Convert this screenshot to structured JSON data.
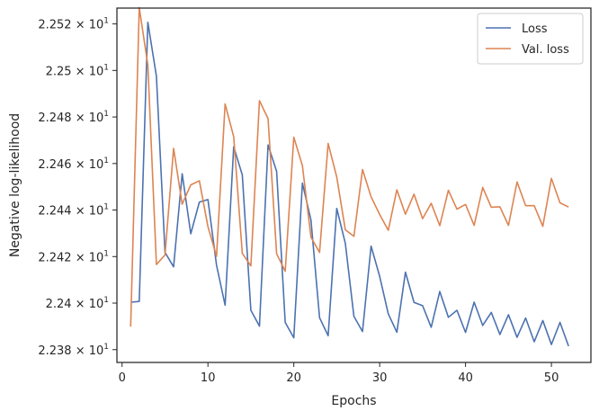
{
  "chart_data": {
    "type": "line",
    "xlabel": "Epochs",
    "ylabel": "Negative log-likelihood",
    "xlim": [
      -0.6,
      54.6
    ],
    "ylim": [
      22.3745,
      22.5268
    ],
    "xticks": [
      0,
      10,
      20,
      30,
      40,
      50
    ],
    "xtick_labels": [
      "0",
      "10",
      "20",
      "30",
      "40",
      "50"
    ],
    "yticks": [
      22.38,
      22.4,
      22.42,
      22.44,
      22.46,
      22.48,
      22.5,
      22.52
    ],
    "ytick_mantissas": [
      "2.238",
      "2.24",
      "2.242",
      "2.244",
      "2.246",
      "2.248",
      "2.25",
      "2.252"
    ],
    "ytick_base": "10",
    "ytick_exponent": "1",
    "legend_position": "top-right",
    "grid": false,
    "x": [
      1,
      2,
      3,
      4,
      5,
      6,
      7,
      8,
      9,
      10,
      11,
      12,
      13,
      14,
      15,
      16,
      17,
      18,
      19,
      20,
      21,
      22,
      23,
      24,
      25,
      26,
      27,
      28,
      29,
      30,
      31,
      32,
      33,
      34,
      35,
      36,
      37,
      38,
      39,
      40,
      41,
      42,
      43,
      44,
      45,
      46,
      47,
      48,
      49,
      50,
      51,
      52
    ],
    "series": [
      {
        "name": "Loss",
        "color": "#4c72b0",
        "values": [
          22.4004,
          22.4007,
          22.5207,
          22.4975,
          22.4218,
          22.4156,
          22.4556,
          22.4298,
          22.4434,
          22.4445,
          22.4163,
          22.3991,
          22.4672,
          22.4551,
          22.3969,
          22.3901,
          22.468,
          22.4566,
          22.3917,
          22.3851,
          22.4516,
          22.4357,
          22.3937,
          22.386,
          22.4407,
          22.4257,
          22.3943,
          22.3878,
          22.4245,
          22.4115,
          22.3954,
          22.3875,
          22.4133,
          22.4003,
          22.3989,
          22.3896,
          22.405,
          22.3939,
          22.3969,
          22.3874,
          22.4004,
          22.3904,
          22.396,
          22.3865,
          22.395,
          22.3853,
          22.3936,
          22.3834,
          22.3925,
          22.3822,
          22.3917,
          22.3815
        ]
      },
      {
        "name": "Val. loss",
        "color": "#dd8452",
        "values": [
          22.3899,
          22.527,
          22.5024,
          22.4166,
          22.4207,
          22.4665,
          22.4425,
          22.4508,
          22.4526,
          22.4329,
          22.4201,
          22.4856,
          22.4715,
          22.4214,
          22.416,
          22.487,
          22.4793,
          22.4212,
          22.4137,
          22.4713,
          22.4591,
          22.4283,
          22.4218,
          22.4686,
          22.4542,
          22.4315,
          22.4287,
          22.4574,
          22.4457,
          22.4381,
          22.4313,
          22.4487,
          22.4382,
          22.4468,
          22.4363,
          22.4429,
          22.4333,
          22.4485,
          22.4404,
          22.4424,
          22.4334,
          22.4497,
          22.4412,
          22.4414,
          22.4334,
          22.4521,
          22.4419,
          22.4419,
          22.433,
          22.4536,
          22.4431,
          22.4413
        ]
      }
    ]
  }
}
